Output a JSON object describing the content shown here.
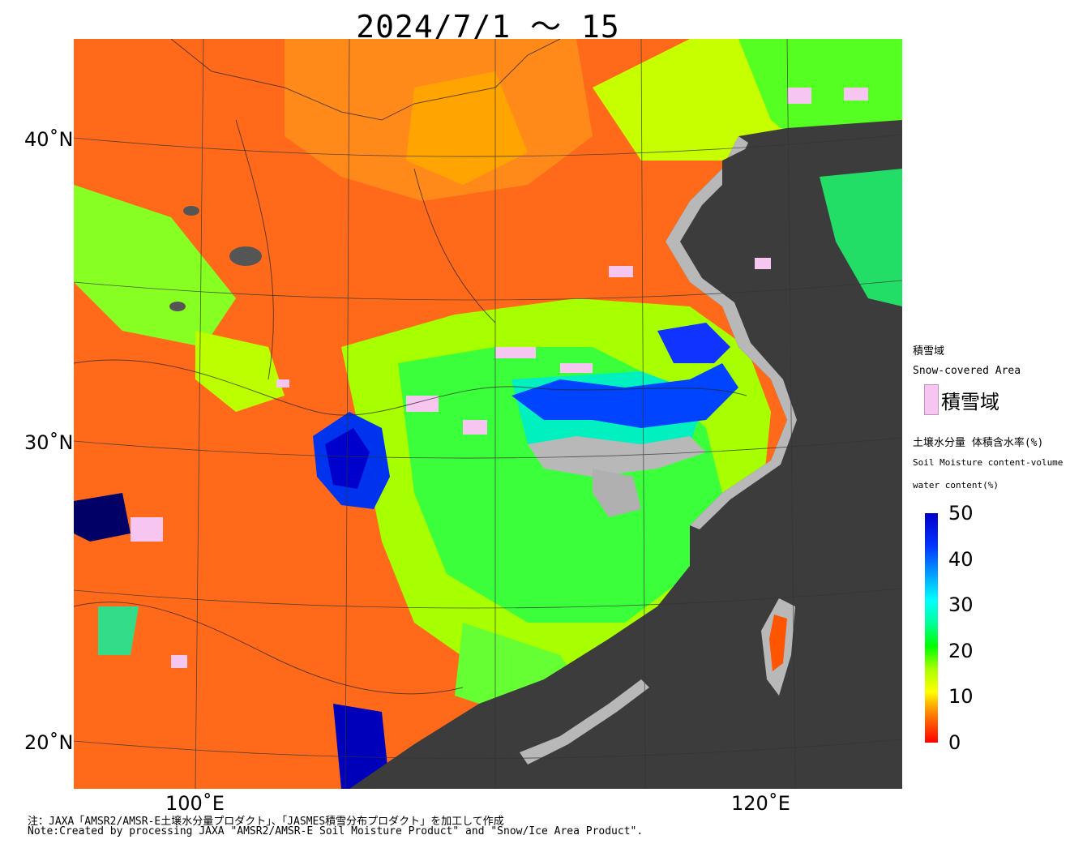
{
  "title": "2024/7/1 ～ 15",
  "map": {
    "lat_labels": [
      "40˚N",
      "30˚N",
      "20˚N"
    ],
    "lon_labels": [
      "100˚E",
      "120˚E"
    ]
  },
  "legend": {
    "snow_title_ja": "積雪域",
    "snow_title_en": "Snow-covered Area",
    "snow_swatch_label": "積雪域",
    "snow_swatch_color": "#f7c6f0",
    "moisture_title_ja": "土壌水分量 体積含水率(%)",
    "moisture_title_en1": "Soil Moisture content-volume",
    "moisture_title_en2": "water content(%)",
    "ticks": [
      "50",
      "40",
      "30",
      "20",
      "10",
      "0"
    ],
    "scale_colors": [
      "#ff0000",
      "#ffaa00",
      "#ffff00",
      "#00ff00",
      "#00ffff",
      "#0033ff",
      "#0000cc"
    ]
  },
  "notes": {
    "ja": "注：JAXA「AMSR2/AMSR-E土壌水分量プロダクト」、「JASMES積雪分布プロダクト」を加工して作成",
    "en": "Note:Created by processing JAXA \"AMSR2/AMSR-E Soil Moisture Product\" and \"Snow/Ice Area Product\"."
  }
}
